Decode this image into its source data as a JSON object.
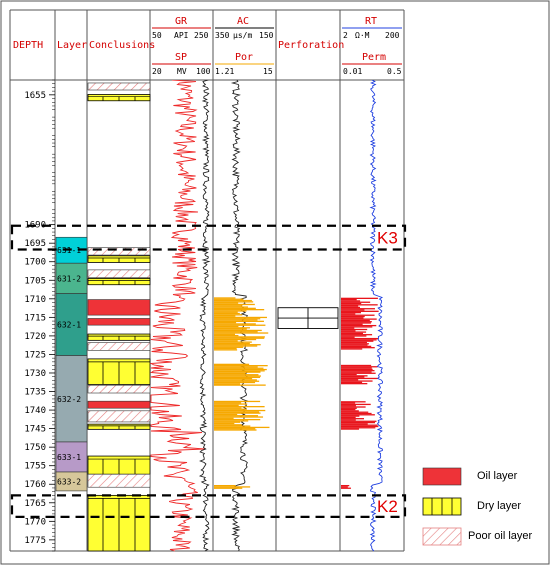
{
  "headers": {
    "depth": "DEPTH",
    "layer": "Layer",
    "conclusions": "Conclusions",
    "gr": {
      "name": "GR",
      "min": "50",
      "unit": "API",
      "max": "250"
    },
    "sp": {
      "name": "SP",
      "min": "20",
      "unit": "MV",
      "max": "100"
    },
    "ac": {
      "name": "AC",
      "min": "350",
      "unit": "μs/m",
      "max": "150"
    },
    "por": {
      "name": "Por",
      "min": "1.21",
      "max": "15"
    },
    "perforation": "Perforation",
    "rt": {
      "name": "RT",
      "min": "2",
      "unit": "Ω·M",
      "max": "200"
    },
    "perm": {
      "name": "Perm",
      "min": "0.01",
      "max": "0.5"
    }
  },
  "depth_range": [
    1651,
    1778
  ],
  "depth_ticks": [
    "1655",
    "1690",
    "1695",
    "1700",
    "1705",
    "1710",
    "1715",
    "1720",
    "1725",
    "1730",
    "1735",
    "1740",
    "1745",
    "1750",
    "1755",
    "1760",
    "1765",
    "1770",
    "1775"
  ],
  "layers": [
    {
      "name": "631-1",
      "top": 1693.4,
      "bottom": 1700.4,
      "color": "#00d0d8"
    },
    {
      "name": "631-2",
      "top": 1700.4,
      "bottom": 1708.6,
      "color": "#4bb58e"
    },
    {
      "name": "632-1",
      "top": 1708.6,
      "bottom": 1725.3,
      "color": "#2f9f8c"
    },
    {
      "name": "632-2",
      "top": 1725.3,
      "bottom": 1748.6,
      "color": "#96aab0"
    },
    {
      "name": "633-1",
      "top": 1748.6,
      "bottom": 1756.7,
      "color": "#b79ac8"
    },
    {
      "name": "633-2",
      "top": 1756.7,
      "bottom": 1761.8,
      "color": "#d6c79a"
    }
  ],
  "conclusions": [
    {
      "type": "poor",
      "top": 1651.8,
      "bottom": 1653.7
    },
    {
      "type": "dry",
      "top": 1654.9,
      "bottom": 1656.6
    },
    {
      "type": "poor",
      "top": 1696.2,
      "bottom": 1698.2
    },
    {
      "type": "dry",
      "top": 1698.4,
      "bottom": 1700.2
    },
    {
      "type": "poor",
      "top": 1702.2,
      "bottom": 1704.3
    },
    {
      "type": "dry",
      "top": 1704.5,
      "bottom": 1706.2
    },
    {
      "type": "oil",
      "top": 1710.2,
      "bottom": 1714.4
    },
    {
      "type": "oil",
      "top": 1715.3,
      "bottom": 1717.1
    },
    {
      "type": "dry",
      "top": 1719.5,
      "bottom": 1721.2
    },
    {
      "type": "poor",
      "top": 1721.8,
      "bottom": 1723.9
    },
    {
      "type": "dry",
      "top": 1726.2,
      "bottom": 1733.1
    },
    {
      "type": "poor",
      "top": 1733.3,
      "bottom": 1735.4
    },
    {
      "type": "oil",
      "top": 1737.6,
      "bottom": 1739.5
    },
    {
      "type": "poor",
      "top": 1740.2,
      "bottom": 1743.2
    },
    {
      "type": "dry",
      "top": 1743.8,
      "bottom": 1745.2
    },
    {
      "type": "dry",
      "top": 1752.4,
      "bottom": 1757.3
    },
    {
      "type": "poor",
      "top": 1757.3,
      "bottom": 1760.8
    },
    {
      "type": "dry",
      "top": 1763.0,
      "bottom": 1778.0
    }
  ],
  "perforation": {
    "top": 1712.4,
    "bottom": 1718.0
  },
  "markers": [
    {
      "label": "K3",
      "top": 1690.3,
      "bottom": 1696.7
    },
    {
      "label": "K2",
      "top": 1763.0,
      "bottom": 1768.8
    }
  ],
  "legend": {
    "oil": "Oil layer",
    "dry": "Dry layer",
    "poor": "Poor oil layer"
  },
  "colors": {
    "oil": "#ee3338",
    "dry": "#ffff33",
    "poor_hatch": "#e57f7f",
    "por_fill": "#f6a800",
    "perm_fill": "#e8141b",
    "sp_curve": "#ee2a2a",
    "rt_curve": "#2040e0",
    "header_red": "#d40000"
  }
}
